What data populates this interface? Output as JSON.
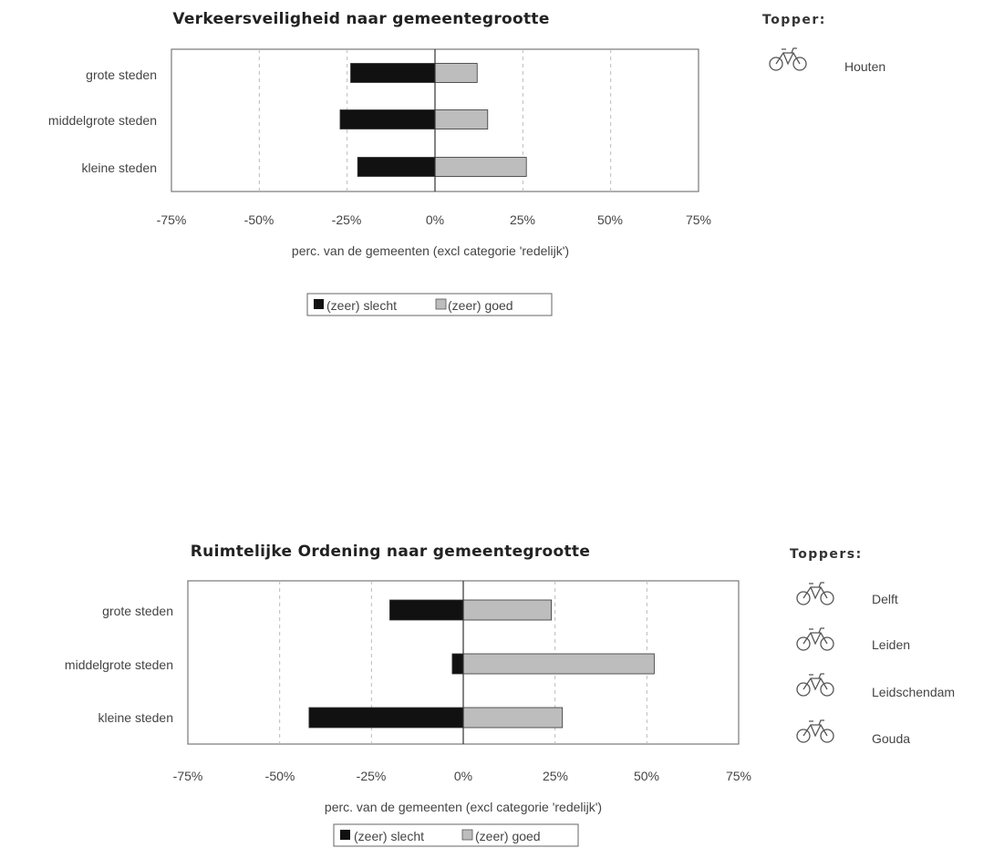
{
  "colors": {
    "slecht": "#111111",
    "goed": "#bdbdbd",
    "frame": "#777777",
    "grid": "#bbbbbb"
  },
  "chart_data": [
    {
      "type": "bar",
      "orientation": "horizontal",
      "title": "Verkeersveiligheid naar gemeentegrootte",
      "categories": [
        "grote steden",
        "middelgrote steden",
        "kleine steden"
      ],
      "series": [
        {
          "name": "(zeer) slecht",
          "values": [
            -24,
            -27,
            -22
          ]
        },
        {
          "name": "(zeer) goed",
          "values": [
            12,
            15,
            26
          ]
        }
      ],
      "xlim": [
        -75,
        75
      ],
      "xticks": [
        "-75%",
        "-50%",
        "-25%",
        "0%",
        "25%",
        "50%",
        "75%"
      ],
      "xlabel": "perc. van de gemeenten (excl categorie 'redelijk')",
      "grid": "vertical dashed",
      "legend_placement": "bottom"
    },
    {
      "type": "bar",
      "orientation": "horizontal",
      "title": "Ruimtelijke Ordening naar gemeentegrootte",
      "categories": [
        "grote steden",
        "middelgrote steden",
        "kleine steden"
      ],
      "series": [
        {
          "name": "(zeer) slecht",
          "values": [
            -20,
            -3,
            -42
          ]
        },
        {
          "name": "(zeer) goed",
          "values": [
            24,
            52,
            27
          ]
        }
      ],
      "xlim": [
        -75,
        75
      ],
      "xticks": [
        "-75%",
        "-50%",
        "-25%",
        "0%",
        "25%",
        "50%",
        "75%"
      ],
      "xlabel": "perc. van de gemeenten (excl categorie 'redelijk')",
      "grid": "vertical dashed",
      "legend_placement": "bottom"
    }
  ],
  "toppers": [
    {
      "heading": "Topper:",
      "icon": "bicycle-icon",
      "names": [
        "Houten"
      ]
    },
    {
      "heading": "Toppers:",
      "icon": "bicycle-icon",
      "names": [
        "Delft",
        "Leiden",
        "Leidschendam",
        "Gouda"
      ]
    }
  ]
}
